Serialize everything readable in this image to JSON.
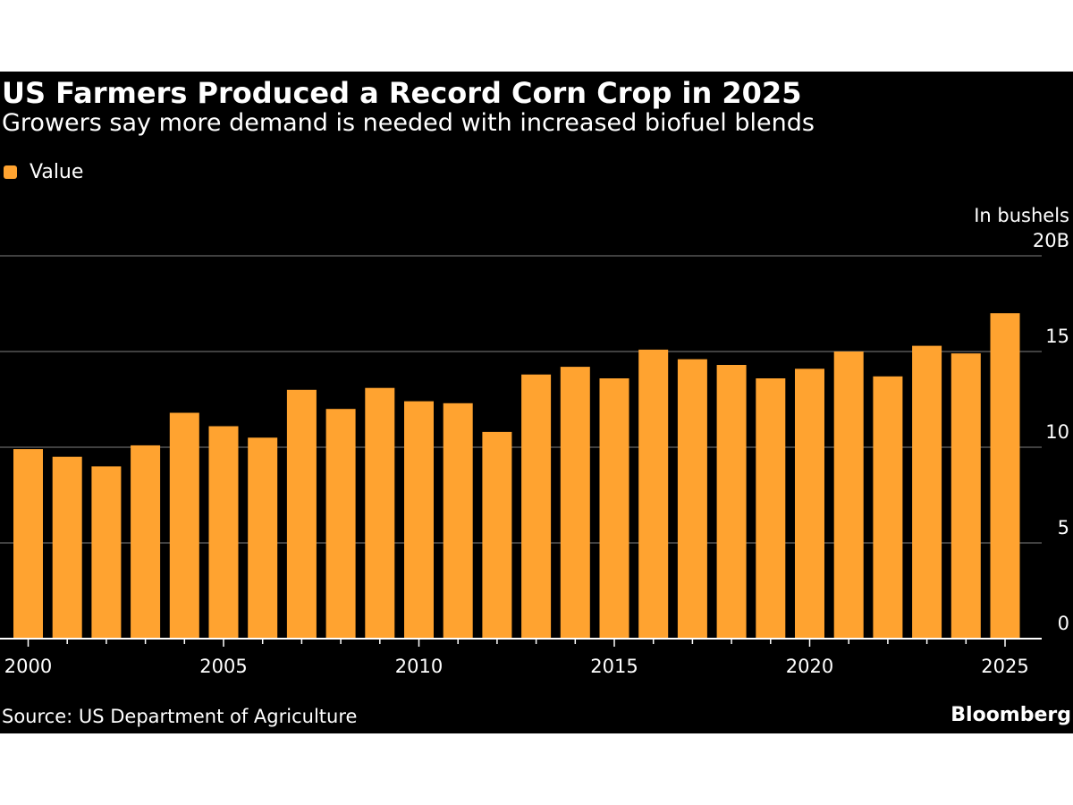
{
  "title": "US Farmers Produced a Record Corn Crop in 2025",
  "subtitle": "Growers say more demand is needed with increased biofuel blends",
  "source": "Source: US Department of Agriculture",
  "brand": "Bloomberg",
  "colors": {
    "bar": "#ffa330",
    "background": "#000000",
    "grid": "#555555",
    "text": "#ffffff"
  },
  "chart_data": {
    "type": "bar",
    "legend": [
      {
        "name": "Value",
        "color": "#ffa330"
      }
    ],
    "unit_label": "In bushels",
    "series": [
      {
        "name": "Value",
        "x": [
          2000,
          2001,
          2002,
          2003,
          2004,
          2005,
          2006,
          2007,
          2008,
          2009,
          2010,
          2011,
          2012,
          2013,
          2014,
          2015,
          2016,
          2017,
          2018,
          2019,
          2020,
          2021,
          2022,
          2023,
          2024,
          2025
        ],
        "values": [
          9.9,
          9.5,
          9.0,
          10.1,
          11.8,
          11.1,
          10.5,
          13.0,
          12.0,
          13.1,
          12.4,
          12.3,
          10.8,
          13.8,
          14.2,
          13.6,
          15.1,
          14.6,
          14.3,
          13.6,
          14.1,
          15.0,
          13.7,
          15.3,
          14.9,
          17.0
        ]
      }
    ],
    "x_ticks": [
      "2000",
      "2005",
      "2010",
      "2015",
      "2020",
      "2025"
    ],
    "y_ticks": [
      "0",
      "5",
      "10",
      "15",
      "20B"
    ],
    "ylim": [
      0,
      20
    ],
    "grid": true,
    "y_axis_side": "right"
  }
}
